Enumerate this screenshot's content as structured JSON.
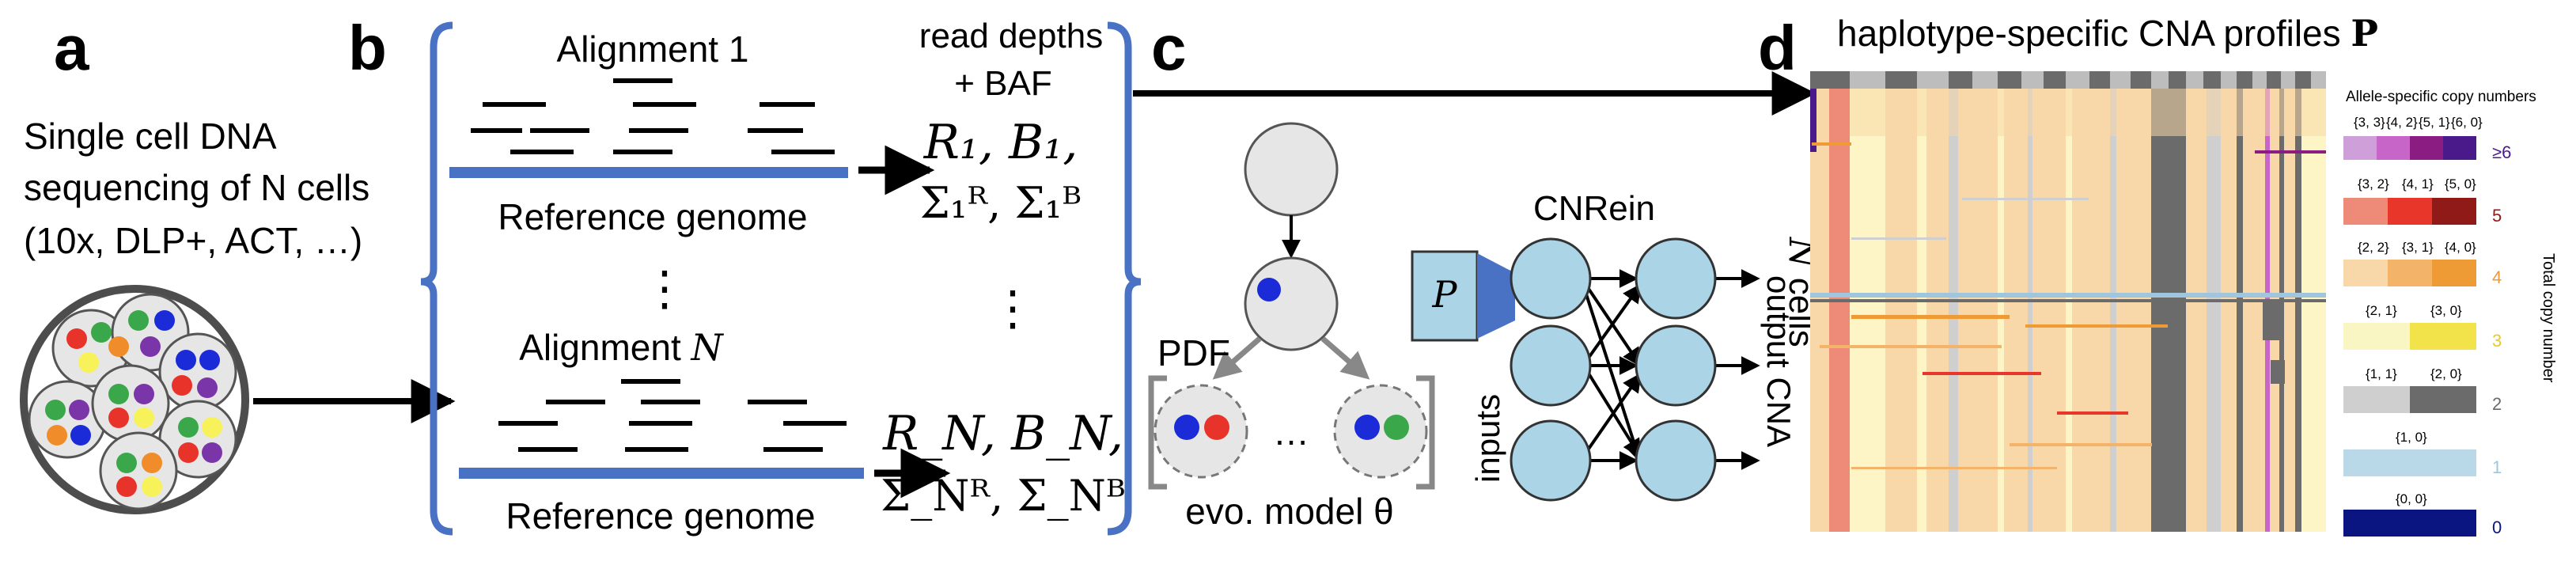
{
  "panels": {
    "a": {
      "letter": "a",
      "lines": [
        "Single cell DNA",
        "sequencing of N cells",
        "(10x, DLP+, ACT, …)"
      ]
    },
    "b": {
      "letter": "b",
      "alignment_first": "Alignment 1",
      "alignment_last_prefix": "Alignment ",
      "alignment_last_var": "N",
      "reference_genome": "Reference genome",
      "vdots": "⋮",
      "read_depths_line1": "read depths",
      "read_depths_line2": "+ BAF",
      "formula1_line1": "R₁, B₁,",
      "formula1_line2": "Σ₁ᴿ, Σ₁ᴮ",
      "formulaN_line1": "R_N, B_N,",
      "formulaN_line2": "Σ_Nᴿ, Σ_Nᴮ"
    },
    "c": {
      "letter": "c",
      "pdf_label": "PDF",
      "evo_label": "evo. model θ",
      "ellipsis": "…",
      "p_label": "P",
      "cnrein_label": "CNRein",
      "inputs_label": "inputs",
      "output_label": "output CNA"
    },
    "d": {
      "letter": "d",
      "title": "haplotype-specific CNA profiles ",
      "title_bold": "P",
      "y_label": "N cells",
      "legend_title": "Allele-specific copy numbers",
      "legend_side_label": "Total copy number",
      "legend": [
        {
          "total": "≥6",
          "labels": [
            "{3, 3}",
            "{4, 2}",
            "{5, 1}",
            "{6, 0}"
          ],
          "colors": [
            "#cf9fd9",
            "#c766c8",
            "#8a1c82",
            "#4b1a8a"
          ],
          "total_color": "#4b1a8a"
        },
        {
          "total": "5",
          "labels": [
            "{3, 2}",
            "{4, 1}",
            "{5, 0}"
          ],
          "colors": [
            "#ee8a78",
            "#e8372a",
            "#8f1a17"
          ],
          "total_color": "#8f1a17"
        },
        {
          "total": "4",
          "labels": [
            "{2, 2}",
            "{3, 1}",
            "{4, 0}"
          ],
          "colors": [
            "#f8d7a8",
            "#f3b469",
            "#ee9a35"
          ],
          "total_color": "#ee9a35"
        },
        {
          "total": "3",
          "labels": [
            "{2, 1}",
            "{3, 0}"
          ],
          "colors": [
            "#faf6c4",
            "#f3e34a"
          ],
          "total_color": "#e8c92a"
        },
        {
          "total": "2",
          "labels": [
            "{1, 1}",
            "{2, 0}"
          ],
          "colors": [
            "#cfcfcf",
            "#6b6b6b"
          ],
          "total_color": "#6b6b6b"
        },
        {
          "total": "1",
          "labels": [
            "{1, 0}"
          ],
          "colors": [
            "#b9d9e9"
          ],
          "total_color": "#9fc6dc"
        },
        {
          "total": "0",
          "labels": [
            "{0, 0}"
          ],
          "colors": [
            "#0a1582"
          ],
          "total_color": "#0a1582"
        }
      ]
    }
  },
  "colors": {
    "bracket_blue": "#4a72c4",
    "node_blue": "#abd4e6",
    "node_gray": "#e6e6e6",
    "dot_red": "#e8332a",
    "dot_blue": "#1b2bd8",
    "dot_green": "#3aa84a",
    "dot_purple": "#7a35a8",
    "dot_yellow": "#f7f25a",
    "dot_orange": "#f08d2a"
  }
}
